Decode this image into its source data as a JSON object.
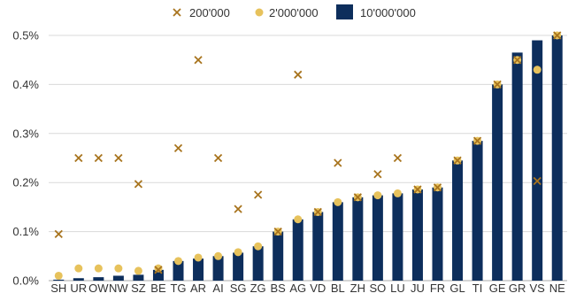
{
  "chart_data": {
    "type": "bar",
    "categories": [
      "SH",
      "UR",
      "OW",
      "NW",
      "SZ",
      "BE",
      "TG",
      "AR",
      "AI",
      "SG",
      "ZG",
      "BS",
      "AG",
      "VD",
      "BL",
      "ZH",
      "SO",
      "LU",
      "JU",
      "FR",
      "GL",
      "TI",
      "GE",
      "GR",
      "VS",
      "NE"
    ],
    "series": [
      {
        "name": "200'000",
        "marker": "x",
        "values": [
          0.095,
          0.25,
          0.25,
          0.25,
          0.197,
          0.022,
          0.27,
          0.45,
          0.25,
          0.146,
          0.175,
          0.1,
          0.42,
          0.14,
          0.24,
          0.17,
          0.217,
          0.25,
          0.186,
          0.19,
          0.245,
          0.285,
          0.4,
          0.45,
          0.203,
          0.5
        ]
      },
      {
        "name": "2'000'000",
        "marker": "dot",
        "values": [
          0.01,
          0.025,
          0.025,
          0.025,
          0.02,
          0.025,
          0.04,
          0.047,
          0.05,
          0.058,
          0.07,
          0.1,
          0.125,
          0.14,
          0.16,
          0.17,
          0.174,
          0.178,
          0.186,
          0.19,
          0.245,
          0.285,
          0.4,
          0.45,
          0.43,
          0.5
        ]
      },
      {
        "name": "10'000'000",
        "marker": "bar",
        "values": [
          0.002,
          0.005,
          0.007,
          0.01,
          0.012,
          0.022,
          0.04,
          0.045,
          0.05,
          0.057,
          0.07,
          0.1,
          0.125,
          0.14,
          0.16,
          0.17,
          0.174,
          0.178,
          0.186,
          0.19,
          0.245,
          0.285,
          0.4,
          0.465,
          0.49,
          0.5
        ]
      }
    ],
    "yticks": [
      "0.0%",
      "0.1%",
      "0.2%",
      "0.3%",
      "0.4%",
      "0.5%"
    ],
    "ylim": [
      0,
      0.5
    ],
    "grid": true,
    "legend_position": "top",
    "colors": {
      "bar": "#0d2e5c",
      "dot": "#e7c25c",
      "cross": "#a8741e",
      "grid": "#d9d9d9",
      "axis": "#aaaaaa"
    }
  }
}
